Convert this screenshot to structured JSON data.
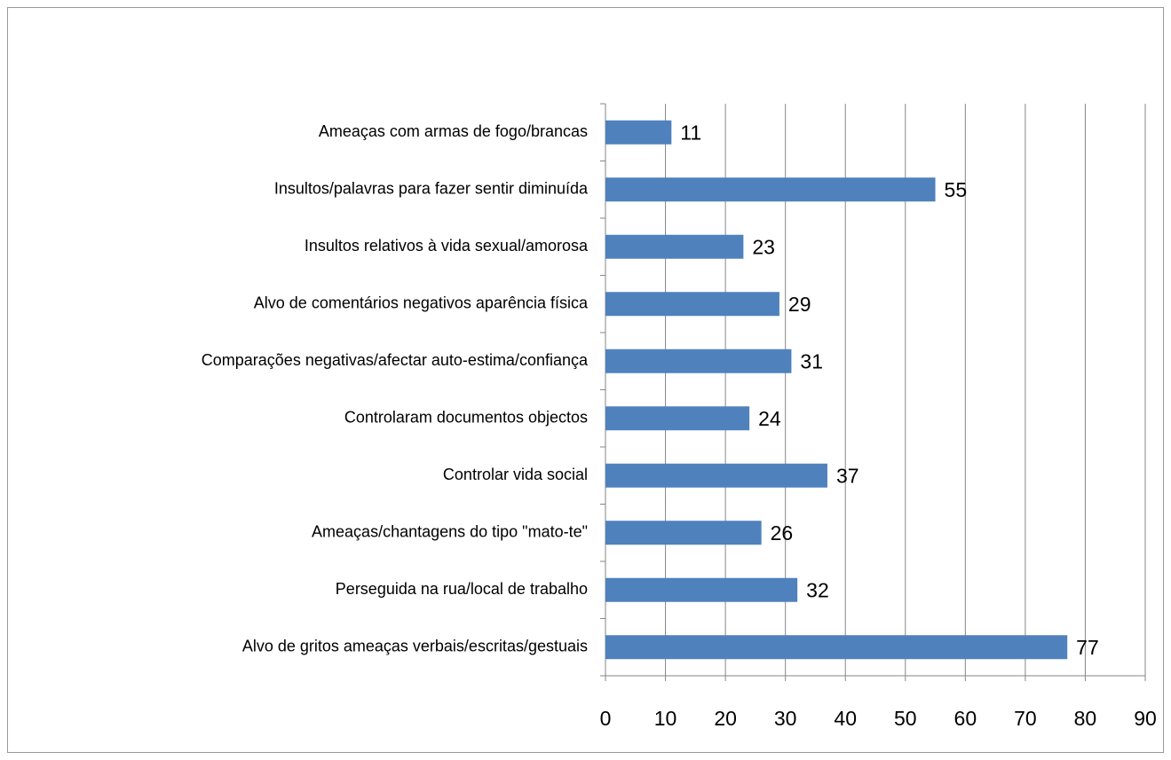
{
  "chart_data": {
    "type": "bar",
    "orientation": "horizontal",
    "categories": [
      "Ameaças com armas de fogo/brancas",
      "Insultos/palavras para fazer sentir diminuída",
      "Insultos relativos à vida sexual/amorosa",
      "Alvo de comentários negativos aparência física",
      "Comparações negativas/afectar auto-estima/confiança",
      "Controlaram documentos objectos",
      "Controlar vida social",
      "Ameaças/chantagens do tipo \"mato-te\"",
      "Perseguida na rua/local de trabalho",
      "Alvo de gritos ameaças verbais/escritas/gestuais"
    ],
    "values": [
      11,
      55,
      23,
      29,
      31,
      24,
      37,
      26,
      32,
      77
    ],
    "color": "#4f81bd",
    "xlim": [
      0,
      90
    ],
    "xticks": [
      0,
      10,
      20,
      30,
      40,
      50,
      60,
      70,
      80,
      90
    ],
    "grid": true
  }
}
